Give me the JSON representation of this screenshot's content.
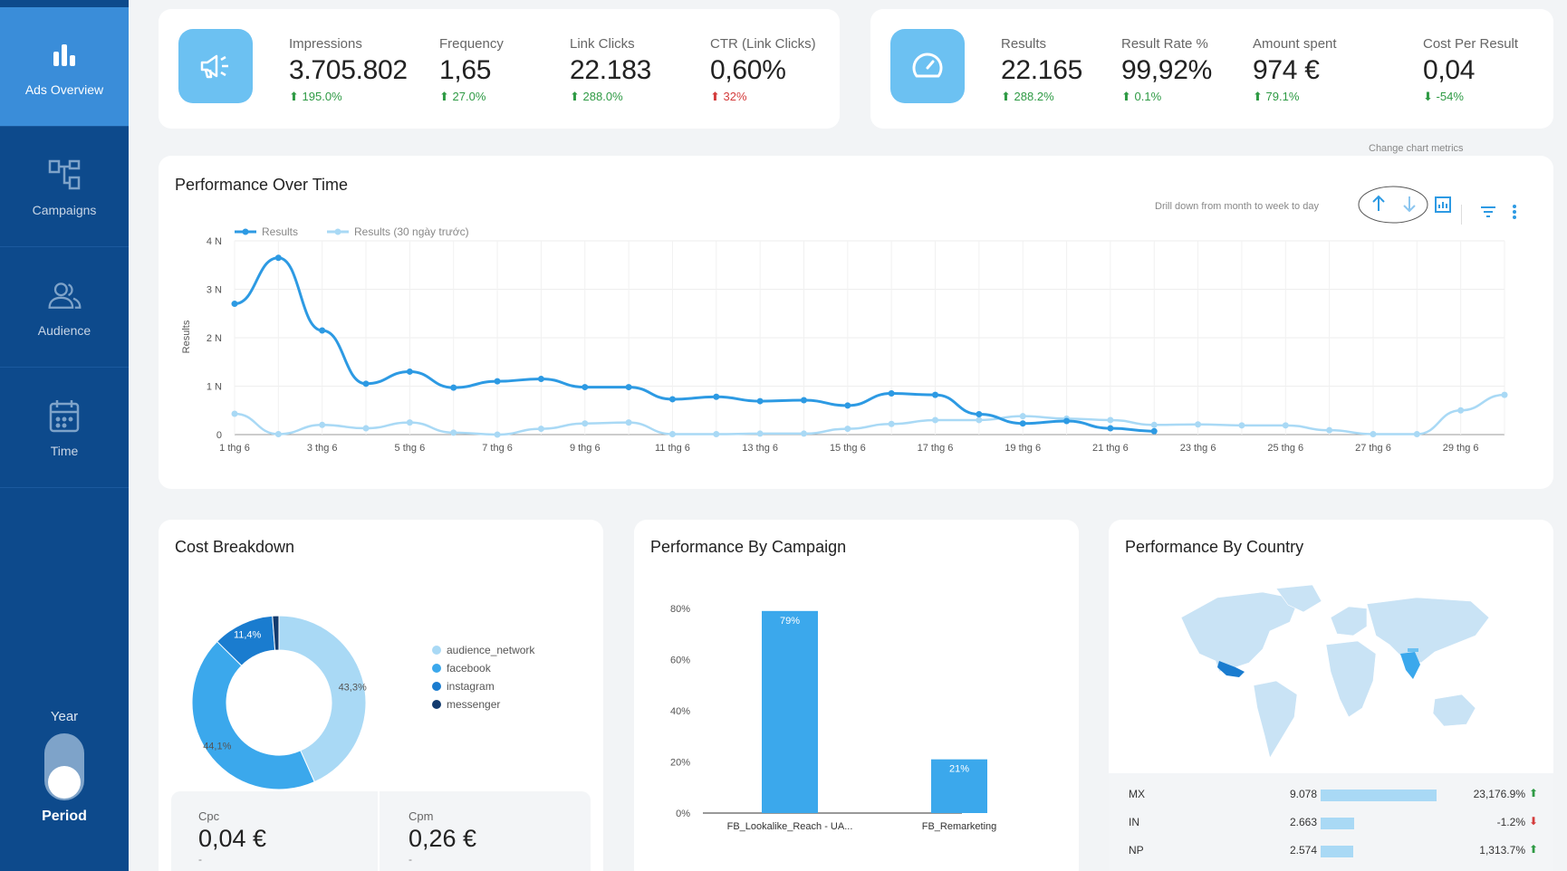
{
  "sidebar": {
    "items": [
      {
        "label": "Ads Overview",
        "icon": "bar-chart-icon"
      },
      {
        "label": "Campaigns",
        "icon": "hierarchy-icon"
      },
      {
        "label": "Audience",
        "icon": "users-icon"
      },
      {
        "label": "Time",
        "icon": "calendar-icon"
      }
    ],
    "toggle_top_label": "Year",
    "toggle_bottom_label": "Period"
  },
  "kpi_left": [
    {
      "label": "Impressions",
      "value": "3.705.802",
      "change": "195.0%",
      "dir": "up"
    },
    {
      "label": "Frequency",
      "value": "1,65",
      "change": "27.0%",
      "dir": "up"
    },
    {
      "label": "Link Clicks",
      "value": "22.183",
      "change": "288.0%",
      "dir": "up"
    },
    {
      "label": "CTR (Link Clicks)",
      "value": "0,60%",
      "change": "32%",
      "dir": "up-red"
    }
  ],
  "kpi_right": [
    {
      "label": "Results",
      "value": "22.165",
      "change": "288.2%",
      "dir": "up"
    },
    {
      "label": "Result Rate %",
      "value": "99,92%",
      "change": "0.1%",
      "dir": "up"
    },
    {
      "label": "Amount spent",
      "value": "974 €",
      "change": "79.1%",
      "dir": "up"
    },
    {
      "label": "Cost Per Result",
      "value": "0,04",
      "change": "-54%",
      "dir": "down-green"
    }
  ],
  "perf": {
    "title": "Performance Over Time",
    "change_metrics_note": "Change chart metrics",
    "drill_note": "Drill down from month to week to day"
  },
  "colors": {
    "primary": "#2d9ae3",
    "secondary": "#a9d9f5",
    "sidebar": "#0d4a8c",
    "accent": "#3a8dd9"
  },
  "chart_data": [
    {
      "type": "line",
      "title": "Performance Over Time",
      "ylabel": "Results",
      "yticks": [
        "0",
        "1 N",
        "2 N",
        "3 N",
        "4 N"
      ],
      "ylim": [
        0,
        4000
      ],
      "xticks": [
        "1 thg 6",
        "3 thg 6",
        "5 thg 6",
        "7 thg 6",
        "9 thg 6",
        "11 thg 6",
        "13 thg 6",
        "15 thg 6",
        "17 thg 6",
        "19 thg 6",
        "21 thg 6",
        "23 thg 6",
        "25 thg 6",
        "27 thg 6",
        "29 thg 6"
      ],
      "series": [
        {
          "name": "Results",
          "values": [
            2700,
            3650,
            2150,
            1050,
            1300,
            970,
            1100,
            1150,
            980,
            980,
            730,
            780,
            690,
            710,
            600,
            850,
            820,
            420,
            230,
            280,
            130,
            70
          ]
        },
        {
          "name": "Results (30 ngày trước)",
          "values": [
            430,
            10,
            200,
            130,
            250,
            40,
            0,
            120,
            230,
            250,
            10,
            10,
            20,
            20,
            120,
            220,
            300,
            300,
            380,
            330,
            300,
            200,
            210,
            190,
            190,
            90,
            10,
            10,
            500,
            820
          ]
        }
      ]
    },
    {
      "type": "pie",
      "title": "Cost Breakdown",
      "labels": [
        "audience_network",
        "facebook",
        "instagram",
        "messenger"
      ],
      "values": [
        43.3,
        44.1,
        11.4,
        1.2
      ],
      "value_labels": [
        "43,3%",
        "44,1%",
        "11,4%",
        ""
      ]
    },
    {
      "type": "bar",
      "title": "Performance By Campaign",
      "categories": [
        "FB_Lookalike_Reach - UA...",
        "FB_Remarketing"
      ],
      "values": [
        79,
        21
      ],
      "value_labels": [
        "79%",
        "21%"
      ],
      "yticks": [
        "0%",
        "20%",
        "40%",
        "60%",
        "80%"
      ],
      "ylim": [
        0,
        85
      ]
    }
  ],
  "cost_tiles": [
    {
      "label": "Cpc",
      "value": "0,04 €",
      "sub": "-"
    },
    {
      "label": "Cpm",
      "value": "0,26 €",
      "sub": "-"
    }
  ],
  "country": {
    "title": "Performance By Country",
    "rows": [
      {
        "code": "MX",
        "value": "9.078",
        "change": "23,176.9%",
        "dir": "up",
        "share": 1.0
      },
      {
        "code": "IN",
        "value": "2.663",
        "change": "-1.2%",
        "dir": "down",
        "share": 0.29
      },
      {
        "code": "NP",
        "value": "2.574",
        "change": "1,313.7%",
        "dir": "up",
        "share": 0.28
      }
    ]
  }
}
